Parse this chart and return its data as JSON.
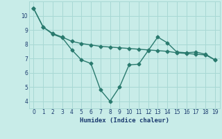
{
  "line1_x": [
    0,
    1,
    2,
    3,
    4,
    5,
    6,
    7,
    8,
    9,
    10,
    11,
    12,
    13,
    14,
    15,
    16,
    17,
    18,
    19
  ],
  "line1_y": [
    10.5,
    9.2,
    8.7,
    8.45,
    7.6,
    6.9,
    6.65,
    4.8,
    4.0,
    5.0,
    6.55,
    6.6,
    7.55,
    8.5,
    8.1,
    7.45,
    7.4,
    7.45,
    7.3,
    6.9
  ],
  "line2_x": [
    0,
    1,
    2,
    3,
    4,
    5,
    6,
    7,
    8,
    9,
    10,
    11,
    12,
    13,
    14,
    15,
    16,
    17,
    18,
    19
  ],
  "line2_y": [
    10.5,
    9.2,
    8.75,
    8.5,
    8.2,
    8.05,
    7.95,
    7.85,
    7.8,
    7.75,
    7.7,
    7.65,
    7.6,
    7.55,
    7.5,
    7.4,
    7.35,
    7.3,
    7.25,
    6.9
  ],
  "line_color": "#2a7a6e",
  "bg_color": "#c8ece8",
  "grid_color": "#a8d8d4",
  "xlabel": "Humidex (Indice chaleur)",
  "xlim": [
    -0.5,
    19.5
  ],
  "ylim": [
    3.5,
    11.0
  ],
  "yticks": [
    4,
    5,
    6,
    7,
    8,
    9,
    10
  ],
  "xticks": [
    0,
    1,
    2,
    3,
    4,
    5,
    6,
    7,
    8,
    9,
    10,
    11,
    12,
    13,
    14,
    15,
    16,
    17,
    18,
    19
  ],
  "tick_color": "#1a3a6e",
  "marker": "D",
  "marker_size": 2.5,
  "linewidth": 1.0
}
